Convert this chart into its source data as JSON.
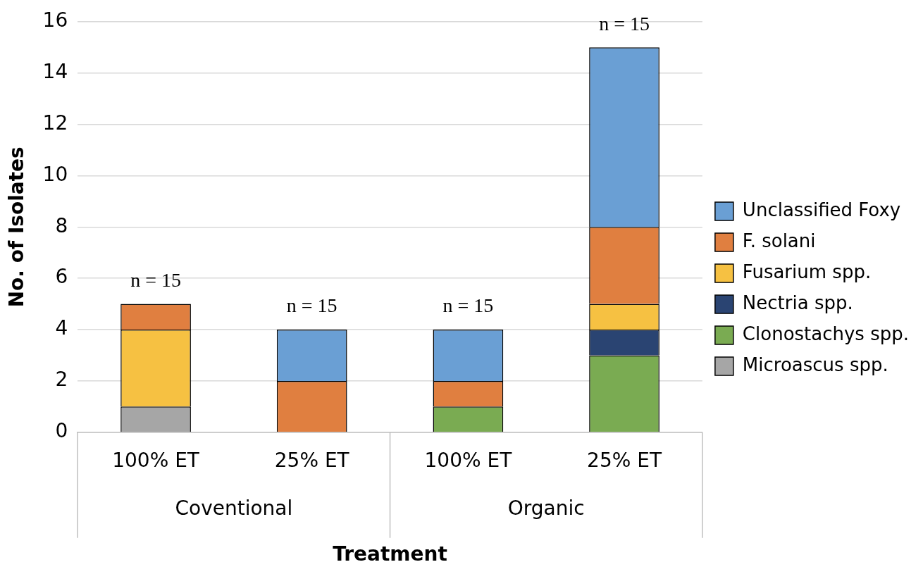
{
  "chart_data": {
    "type": "bar",
    "stacked": true,
    "xlabel": "Treatment",
    "ylabel": "No. of Isolates",
    "categories": [
      "100% ET",
      "25% ET",
      "100% ET",
      "25% ET"
    ],
    "series": [
      {
        "name": "Microascus spp.",
        "color": "#a6a6a6",
        "values": [
          1,
          0,
          0,
          0
        ]
      },
      {
        "name": "Clonostachys spp.",
        "color": "#7aab52",
        "values": [
          0,
          0,
          1,
          3
        ]
      },
      {
        "name": "Nectria spp.",
        "color": "#2a4472",
        "values": [
          0,
          0,
          0,
          1
        ]
      },
      {
        "name": "Fusarium spp.",
        "color": "#f6c142",
        "values": [
          3,
          0,
          0,
          1
        ]
      },
      {
        "name": "F. solani",
        "color": "#e07f40",
        "values": [
          1,
          2,
          1,
          3
        ]
      },
      {
        "name": "Unclassified Foxy",
        "color": "#6a9fd4",
        "values": [
          0,
          2,
          2,
          7
        ]
      }
    ],
    "ylim": [
      0,
      16
    ],
    "yticks": [
      0,
      2,
      4,
      6,
      8,
      10,
      12,
      14,
      16
    ],
    "grid": "y",
    "legend": "right",
    "annotations": [
      "n = 15",
      "n = 15",
      "n = 15",
      "n = 15",
      "Coventional",
      "Organic"
    ]
  }
}
